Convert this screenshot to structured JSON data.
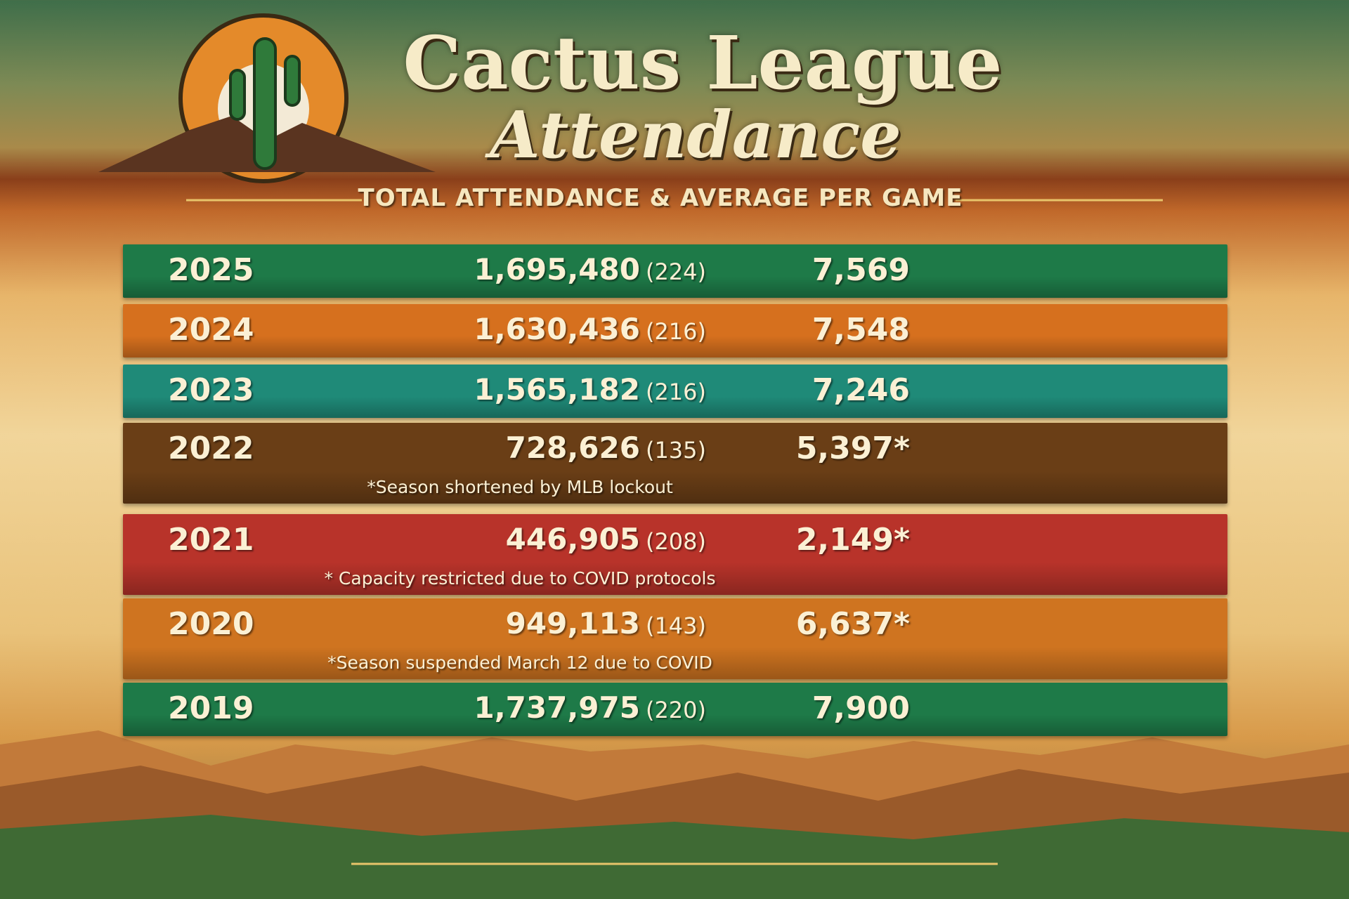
{
  "header": {
    "title_lines": [
      "Cactus League",
      "Attendance"
    ],
    "subtitle": "TOTAL ATTENDANCE & AVERAGE PER GAME"
  },
  "table": {
    "rows": [
      {
        "year": "2025",
        "total": "1,695,480",
        "games": "(224)",
        "average": "7,569"
      },
      {
        "year": "2024",
        "total": "1,630,436",
        "games": "(216)",
        "average": "7,548"
      },
      {
        "year": "2023",
        "total": "1,565,182",
        "games": "(216)",
        "average": "7,246"
      },
      {
        "year": "2022",
        "total": "728,626",
        "games": "(135)",
        "average": "5,397*",
        "note": "*Season shortened by MLB lockout"
      },
      {
        "year": "2021",
        "total": "446,905",
        "games": "(208)",
        "average": "2,149*",
        "note": "* Capacity restricted due to COVID protocols"
      },
      {
        "year": "2020",
        "total": "949,113",
        "games": "(143)",
        "average": "6,637*",
        "note": "*Season suspended March 12 due to COVID"
      },
      {
        "year": "2019",
        "total": "1,737,975",
        "games": "(220)",
        "average": "7,900"
      }
    ]
  }
}
